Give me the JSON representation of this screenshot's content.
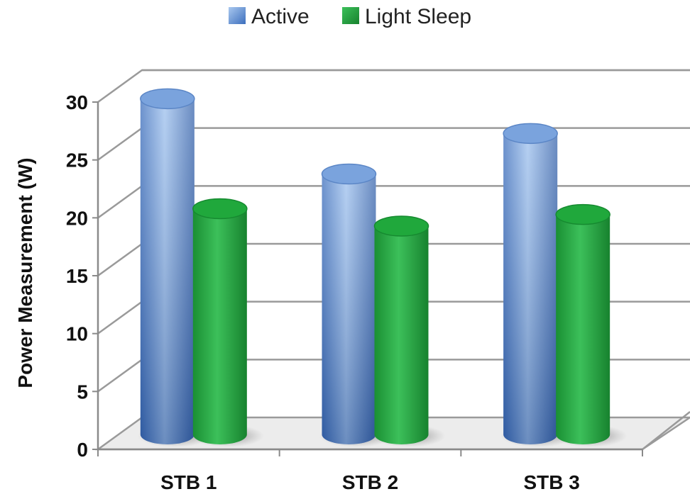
{
  "chart_data": {
    "type": "bar",
    "title": "",
    "xlabel": "",
    "ylabel": "Power Measurement (W)",
    "categories": [
      "STB 1",
      "STB 2",
      "STB 3"
    ],
    "series": [
      {
        "name": "Active",
        "values": [
          29,
          22.5,
          26
        ]
      },
      {
        "name": "Light Sleep",
        "values": [
          19.5,
          18,
          19
        ]
      }
    ],
    "ylim": [
      0,
      30
    ],
    "yticks": [
      "0",
      "5",
      "10",
      "15",
      "20",
      "25",
      "30"
    ],
    "grid": true,
    "legend_position": "top-center",
    "style": "3d-cylinder",
    "colors": {
      "Active": "#4a7cc6",
      "Light Sleep": "#27a844"
    }
  }
}
